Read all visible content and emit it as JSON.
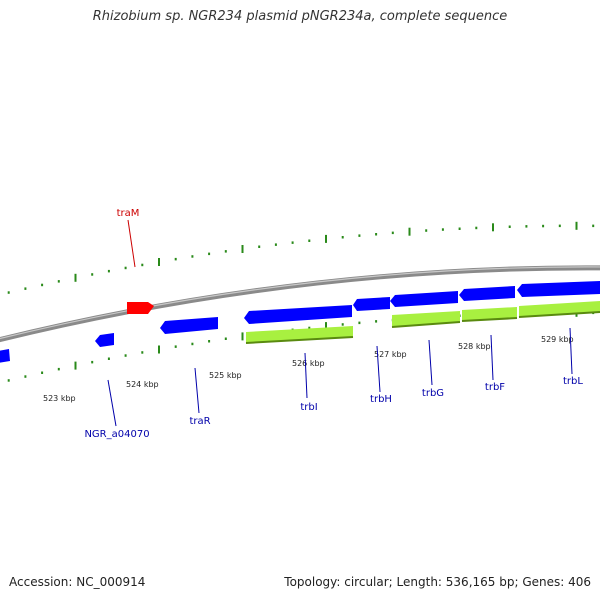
{
  "header": {
    "title": "Rhizobium sp. NGR234 plasmid pNGR234a, complete sequence"
  },
  "footer": {
    "accession": "Accession: NC_000914",
    "summary": "Topology: circular; Length: 536,165 bp; Genes: 406"
  },
  "colors": {
    "background": "#ffffff",
    "backbone": "#8a8a8a",
    "gene_forward": "#ff0000",
    "gene_reverse": "#0000ff",
    "cds_feature": "#a8f040",
    "tick_marks": "#2a8a1a",
    "label_forward": "#cc0000",
    "label_reverse": "#0000aa"
  },
  "scale": {
    "ticks": [
      {
        "label": "523 kbp"
      },
      {
        "label": "524 kbp"
      },
      {
        "label": "525 kbp"
      },
      {
        "label": "526 kbp"
      },
      {
        "label": "527 kbp"
      },
      {
        "label": "528 kbp"
      },
      {
        "label": "529 kbp"
      }
    ]
  },
  "genes": {
    "forward": [
      {
        "name": "traM"
      }
    ],
    "reverse": [
      {
        "name": "NGR_a04070"
      },
      {
        "name": "traR"
      },
      {
        "name": "trbI"
      },
      {
        "name": "trbH"
      },
      {
        "name": "trbG"
      },
      {
        "name": "trbF"
      },
      {
        "name": "trbL"
      }
    ]
  }
}
